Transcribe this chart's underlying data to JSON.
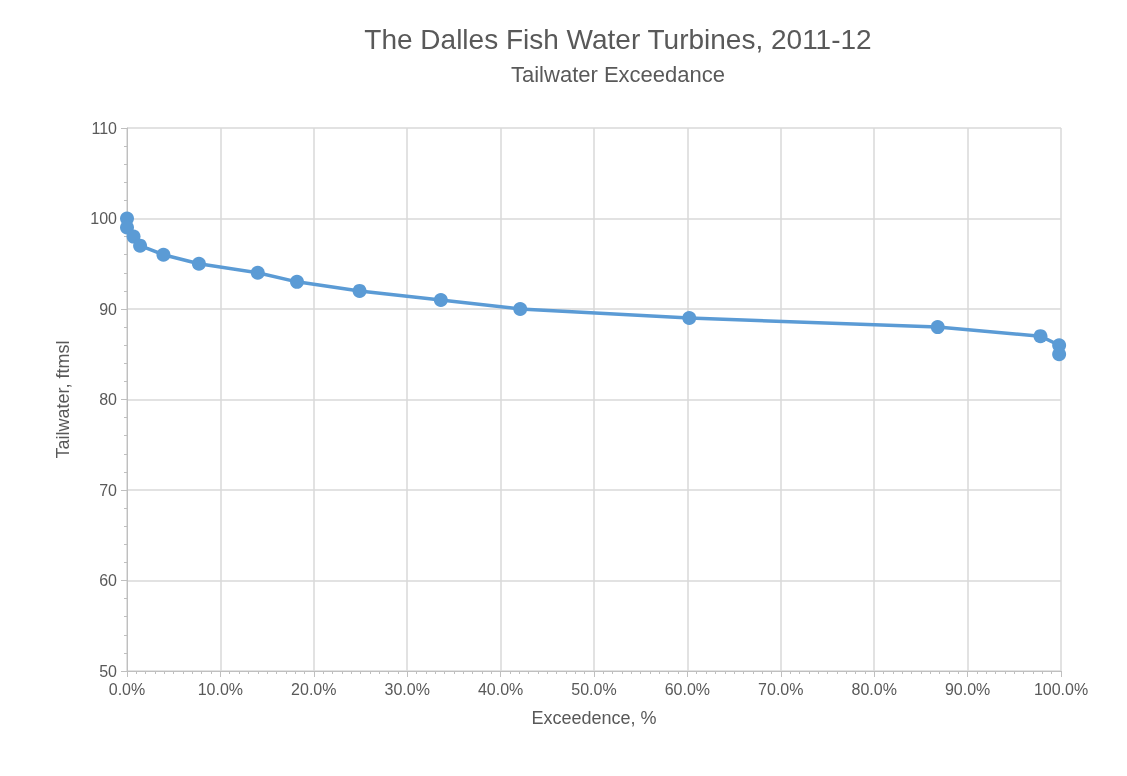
{
  "chart_data": {
    "type": "line",
    "title": "The Dalles Fish Water Turbines, 2011-12",
    "subtitle": "Tailwater Exceedance",
    "xlabel": "Exceedence, %",
    "ylabel": "Tailwater, ftmsl",
    "series": [
      {
        "color": "#5b9bd5",
        "x": [
          0,
          0,
          0.7,
          1.4,
          3.9,
          7.7,
          14.0,
          18.2,
          24.9,
          33.6,
          42.1,
          60.2,
          86.8,
          97.8,
          99.8,
          99.8
        ],
        "values": [
          100,
          99,
          98,
          97,
          96,
          95,
          94,
          93,
          92,
          91,
          90,
          89,
          88,
          87,
          86,
          85
        ]
      }
    ],
    "xlim": [
      0,
      100
    ],
    "xticks": [
      {
        "value": 0,
        "label": "0.0%"
      },
      {
        "value": 10,
        "label": "10.0%"
      },
      {
        "value": 20,
        "label": "20.0%"
      },
      {
        "value": 30,
        "label": "30.0%"
      },
      {
        "value": 40,
        "label": "40.0%"
      },
      {
        "value": 50,
        "label": "50.0%"
      },
      {
        "value": 60,
        "label": "60.0%"
      },
      {
        "value": 70,
        "label": "70.0%"
      },
      {
        "value": 80,
        "label": "80.0%"
      },
      {
        "value": 90,
        "label": "90.0%"
      },
      {
        "value": 100,
        "label": "100.0%"
      }
    ],
    "ylim": [
      50,
      110
    ],
    "yticks": [
      50,
      60,
      70,
      80,
      90,
      100,
      110
    ],
    "grid": true,
    "marker": "circle",
    "line_style": "solid"
  }
}
